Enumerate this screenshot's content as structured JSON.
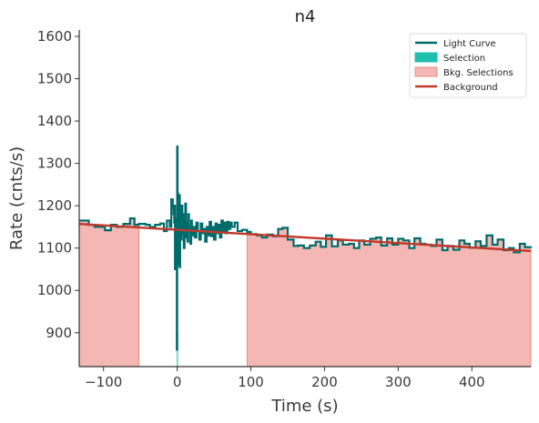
{
  "chart_data": {
    "type": "line",
    "title": "n4",
    "xlabel": "Time (s)",
    "ylabel": "Rate (cnts/s)",
    "xlim": [
      -133,
      480
    ],
    "ylim": [
      820,
      1615
    ],
    "xticks": [
      -100,
      0,
      100,
      200,
      300,
      400
    ],
    "yticks": [
      900,
      1000,
      1100,
      1200,
      1300,
      1400,
      1500,
      1600
    ],
    "grid": false,
    "legend_position": "top-right",
    "colors": {
      "light_curve": "#006b6b",
      "selection": "#1fbfb0",
      "bkg_selection_fill": "#f4b7b3",
      "bkg_selection_edge": "#e88c86",
      "background": "#c0392b",
      "axis": "#333333"
    },
    "legend": [
      {
        "label": "Light Curve",
        "kind": "line",
        "color": "#006b6b"
      },
      {
        "label": "Selection",
        "kind": "patch",
        "color": "#1fbfb0"
      },
      {
        "label": "Bkg. Selections",
        "kind": "patch",
        "color": "#f4b7b3"
      },
      {
        "label": "Background",
        "kind": "line",
        "color": "#c0392b"
      }
    ],
    "selection": [
      -1,
      1
    ],
    "bkg_selections": [
      [
        -133,
        -52
      ],
      [
        95,
        480
      ]
    ],
    "background": {
      "x": [
        -133,
        480
      ],
      "y": [
        1157,
        1093
      ]
    },
    "light_curve": {
      "x": [
        -133,
        -120,
        -112,
        -98,
        -90,
        -82,
        -73,
        -64,
        -58,
        -52,
        -43,
        -37,
        -30,
        -23,
        -18,
        -14,
        -10,
        -8,
        -6,
        -5,
        -4,
        -3.5,
        -3,
        -2.5,
        -2,
        -1.5,
        -1,
        -0.5,
        0,
        0.5,
        1,
        1.5,
        2,
        2.5,
        3,
        3.5,
        4,
        5,
        6,
        7,
        8,
        9,
        10,
        11,
        12,
        13,
        14,
        15,
        16,
        17,
        18,
        19,
        20,
        22,
        24,
        26,
        28,
        30,
        32,
        34,
        36,
        38,
        40,
        42,
        44,
        46,
        48,
        50,
        52,
        54,
        56,
        58,
        60,
        62,
        64,
        66,
        68,
        70,
        72,
        74,
        78,
        82,
        88,
        95,
        100,
        108,
        115,
        122,
        130,
        137,
        143,
        150,
        158,
        164,
        172,
        180,
        188,
        195,
        202,
        210,
        218,
        225,
        233,
        240,
        247,
        254,
        262,
        270,
        277,
        285,
        292,
        300,
        307,
        315,
        322,
        330,
        337,
        345,
        352,
        360,
        367,
        375,
        383,
        390,
        397,
        405,
        412,
        420,
        428,
        435,
        443,
        450,
        457,
        465,
        472,
        480
      ],
      "y": [
        1165,
        1155,
        1150,
        1142,
        1155,
        1150,
        1157,
        1170,
        1155,
        1157,
        1155,
        1150,
        1155,
        1158,
        1140,
        1165,
        1150,
        1215,
        1195,
        1180,
        1160,
        1200,
        1050,
        1170,
        1110,
        1090,
        1130,
        860,
        1340,
        1230,
        1120,
        1060,
        1180,
        1100,
        1225,
        1055,
        1160,
        1120,
        1200,
        1135,
        1180,
        1100,
        1145,
        1205,
        1125,
        1160,
        1115,
        1180,
        1140,
        1150,
        1110,
        1165,
        1130,
        1150,
        1125,
        1160,
        1140,
        1120,
        1158,
        1135,
        1145,
        1115,
        1150,
        1130,
        1162,
        1128,
        1150,
        1120,
        1158,
        1135,
        1155,
        1125,
        1165,
        1140,
        1160,
        1135,
        1162,
        1145,
        1160,
        1150,
        1160,
        1140,
        1143,
        1138,
        1133,
        1130,
        1125,
        1132,
        1128,
        1145,
        1148,
        1120,
        1105,
        1106,
        1100,
        1106,
        1115,
        1103,
        1130,
        1104,
        1118,
        1108,
        1110,
        1100,
        1118,
        1108,
        1122,
        1125,
        1106,
        1123,
        1108,
        1122,
        1118,
        1100,
        1123,
        1110,
        1108,
        1105,
        1120,
        1095,
        1105,
        1096,
        1118,
        1110,
        1101,
        1116,
        1105,
        1130,
        1108,
        1120,
        1095,
        1100,
        1090,
        1110,
        1102,
        1100
      ]
    }
  }
}
